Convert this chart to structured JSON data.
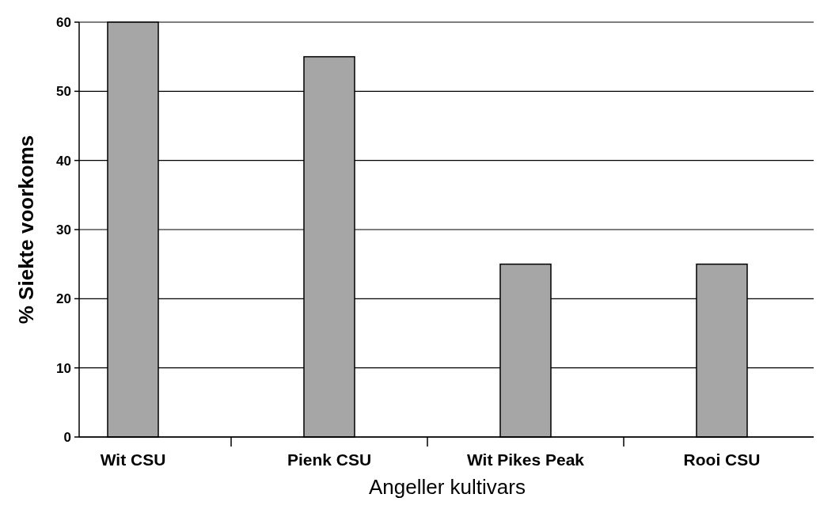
{
  "chart_data": {
    "type": "bar",
    "xlabel": "Angeller kultivars",
    "ylabel": "% Siekte voorkoms",
    "categories": [
      "Wit CSU",
      "Pienk CSU",
      "Wit Pikes Peak",
      "Rooi CSU"
    ],
    "values": [
      60,
      55,
      25,
      25
    ],
    "color": "#a6a6a6",
    "ylim": [
      0,
      60
    ],
    "yticks": [
      0,
      10,
      20,
      30,
      40,
      50,
      60
    ],
    "grid": "y"
  }
}
